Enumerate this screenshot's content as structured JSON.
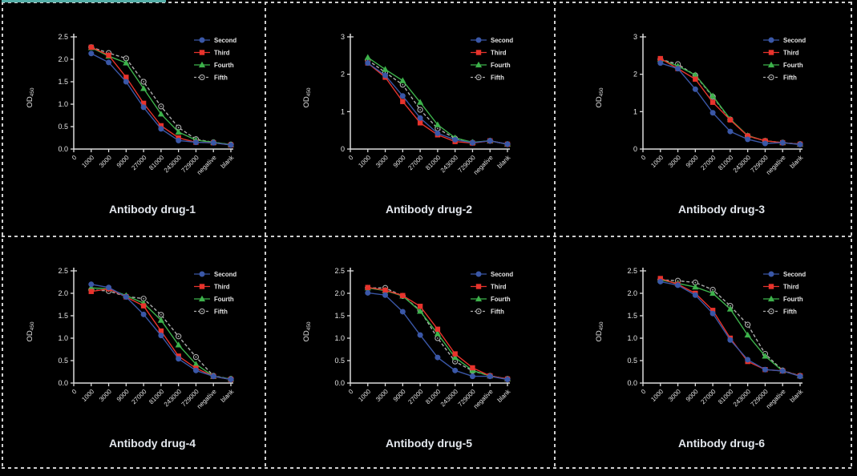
{
  "figure": {
    "background": "#000000",
    "accent_bar_color": "#54AFA8",
    "panel_border_color": "#CFCFCF",
    "axis_color": "#DCDCDC",
    "tick_text_color": "#E3E3E3",
    "title_text_color": "#E2E6EC",
    "legend_text_color": "#E3E3E3",
    "y_axis_label": "OD",
    "y_axis_label_subscript": "450",
    "series_styles": [
      {
        "name": "Second",
        "color": "#3A57A7",
        "marker": "circle",
        "line": "solid"
      },
      {
        "name": "Third",
        "color": "#E8332C",
        "marker": "square",
        "line": "solid"
      },
      {
        "name": "Fourth",
        "color": "#3DB24B",
        "marker": "triangle",
        "line": "solid"
      },
      {
        "name": "Fifth",
        "color": "#ADADAD",
        "marker": "circle-dot",
        "line": "dashed"
      }
    ]
  },
  "chart_data": [
    {
      "type": "line",
      "title": "Antibody drug-1",
      "ylim": [
        0,
        2.5
      ],
      "ytick_labels": [
        "0.0",
        "0.5",
        "1.0",
        "1.5",
        "2.0",
        "2.5"
      ],
      "x_tick_labels": [
        "0",
        "1000",
        "3000",
        "9000",
        "27000",
        "81000",
        "243000",
        "729000",
        "negative",
        "blank"
      ],
      "categories": [
        "1000",
        "3000",
        "9000",
        "27000",
        "81000",
        "243000",
        "729000",
        "negative",
        "blank"
      ],
      "series": [
        {
          "name": "Second",
          "values": [
            2.13,
            1.93,
            1.5,
            0.93,
            0.45,
            0.19,
            0.15,
            0.14,
            0.09
          ]
        },
        {
          "name": "Third",
          "values": [
            2.27,
            2.09,
            1.6,
            1.02,
            0.52,
            0.25,
            0.15,
            0.14,
            0.09
          ]
        },
        {
          "name": "Fourth",
          "values": [
            2.26,
            2.07,
            1.92,
            1.35,
            0.78,
            0.38,
            0.2,
            0.15,
            0.1
          ]
        },
        {
          "name": "Fifth",
          "values": [
            2.27,
            2.14,
            2.02,
            1.5,
            0.95,
            0.48,
            0.22,
            0.15,
            0.1
          ]
        }
      ]
    },
    {
      "type": "line",
      "title": "Antibody drug-2",
      "ylim": [
        0,
        3
      ],
      "ytick_labels": [
        "0",
        "1",
        "2",
        "3"
      ],
      "x_tick_labels": [
        "0",
        "1000",
        "3000",
        "9000",
        "27000",
        "81000",
        "243000",
        "729000",
        "negative",
        "blank"
      ],
      "categories": [
        "1000",
        "3000",
        "9000",
        "27000",
        "81000",
        "243000",
        "729000",
        "negative",
        "blank"
      ],
      "series": [
        {
          "name": "Second",
          "values": [
            2.3,
            1.97,
            1.42,
            0.83,
            0.42,
            0.25,
            0.17,
            0.22,
            0.13
          ]
        },
        {
          "name": "Third",
          "values": [
            2.3,
            1.92,
            1.27,
            0.7,
            0.38,
            0.2,
            0.16,
            0.22,
            0.13
          ]
        },
        {
          "name": "Fourth",
          "values": [
            2.45,
            2.13,
            1.83,
            1.25,
            0.65,
            0.3,
            0.18,
            0.22,
            0.13
          ]
        },
        {
          "name": "Fifth",
          "values": [
            2.38,
            2.05,
            1.72,
            1.05,
            0.55,
            0.28,
            0.17,
            0.22,
            0.13
          ]
        }
      ]
    },
    {
      "type": "line",
      "title": "Antibody drug-3",
      "ylim": [
        0,
        3
      ],
      "ytick_labels": [
        "0",
        "1",
        "2",
        "3"
      ],
      "x_tick_labels": [
        "0",
        "1000",
        "3000",
        "9000",
        "27000",
        "81000",
        "243000",
        "729000",
        "negative",
        "blank"
      ],
      "categories": [
        "1000",
        "3000",
        "9000",
        "27000",
        "81000",
        "243000",
        "729000",
        "negative",
        "blank"
      ],
      "series": [
        {
          "name": "Second",
          "values": [
            2.3,
            2.15,
            1.6,
            0.97,
            0.47,
            0.26,
            0.15,
            0.17,
            0.12
          ]
        },
        {
          "name": "Third",
          "values": [
            2.42,
            2.15,
            1.87,
            1.25,
            0.78,
            0.35,
            0.22,
            0.17,
            0.13
          ]
        },
        {
          "name": "Fourth",
          "values": [
            2.4,
            2.22,
            1.98,
            1.42,
            0.8,
            0.36,
            0.22,
            0.17,
            0.13
          ]
        },
        {
          "name": "Fifth",
          "values": [
            2.4,
            2.27,
            1.97,
            1.4,
            0.79,
            0.35,
            0.22,
            0.17,
            0.13
          ]
        }
      ]
    },
    {
      "type": "line",
      "title": "Antibody drug-4",
      "ylim": [
        0,
        2.5
      ],
      "ytick_labels": [
        "0.0",
        "0.5",
        "1.0",
        "1.5",
        "2.0",
        "2.5"
      ],
      "x_tick_labels": [
        "0",
        "1000",
        "3000",
        "9000",
        "27000",
        "81000",
        "243000",
        "729000",
        "negative",
        "blank"
      ],
      "categories": [
        "1000",
        "3000",
        "9000",
        "27000",
        "81000",
        "243000",
        "729000",
        "negative",
        "blank"
      ],
      "series": [
        {
          "name": "Second",
          "values": [
            2.2,
            2.13,
            1.92,
            1.53,
            1.06,
            0.54,
            0.28,
            0.15,
            0.08
          ]
        },
        {
          "name": "Third",
          "values": [
            2.04,
            2.1,
            1.92,
            1.72,
            1.16,
            0.6,
            0.33,
            0.15,
            0.08
          ]
        },
        {
          "name": "Fourth",
          "values": [
            2.12,
            2.1,
            1.95,
            1.78,
            1.4,
            0.85,
            0.42,
            0.15,
            0.09
          ]
        },
        {
          "name": "Fifth",
          "values": [
            2.08,
            2.05,
            1.93,
            1.88,
            1.52,
            1.04,
            0.58,
            0.16,
            0.09
          ]
        }
      ]
    },
    {
      "type": "line",
      "title": "Antibody drug-5",
      "ylim": [
        0,
        2.5
      ],
      "ytick_labels": [
        "0.0",
        "0.5",
        "1.0",
        "1.5",
        "2.0",
        "2.5"
      ],
      "x_tick_labels": [
        "0",
        "1000",
        "3000",
        "9000",
        "27000",
        "81000",
        "243000",
        "729000",
        "negative",
        "blank"
      ],
      "categories": [
        "1000",
        "3000",
        "9000",
        "27000",
        "81000",
        "243000",
        "729000",
        "negative",
        "blank"
      ],
      "series": [
        {
          "name": "Second",
          "values": [
            2.01,
            1.96,
            1.59,
            1.07,
            0.57,
            0.28,
            0.15,
            0.15,
            0.08
          ]
        },
        {
          "name": "Third",
          "values": [
            2.13,
            2.07,
            1.95,
            1.71,
            1.2,
            0.65,
            0.34,
            0.16,
            0.09
          ]
        },
        {
          "name": "Fourth",
          "values": [
            2.12,
            2.06,
            1.94,
            1.6,
            1.1,
            0.57,
            0.28,
            0.16,
            0.09
          ]
        },
        {
          "name": "Fifth",
          "values": [
            2.12,
            2.12,
            1.94,
            1.62,
            1.0,
            0.48,
            0.27,
            0.16,
            0.09
          ]
        }
      ]
    },
    {
      "type": "line",
      "title": "Antibody drug-6",
      "ylim": [
        0,
        2.5
      ],
      "ytick_labels": [
        "0.0",
        "0.5",
        "1.0",
        "1.5",
        "2.0",
        "2.5"
      ],
      "x_tick_labels": [
        "0",
        "1000",
        "3000",
        "9000",
        "27000",
        "81000",
        "243000",
        "729000",
        "negative",
        "blank"
      ],
      "categories": [
        "1000",
        "3000",
        "9000",
        "27000",
        "81000",
        "243000",
        "729000",
        "negative",
        "blank"
      ],
      "series": [
        {
          "name": "Second",
          "values": [
            2.26,
            2.18,
            1.96,
            1.55,
            0.96,
            0.52,
            0.3,
            0.27,
            0.15
          ]
        },
        {
          "name": "Third",
          "values": [
            2.33,
            2.2,
            2.0,
            1.62,
            1.0,
            0.48,
            0.3,
            0.27,
            0.16
          ]
        },
        {
          "name": "Fourth",
          "values": [
            2.3,
            2.22,
            2.14,
            2.0,
            1.65,
            1.07,
            0.6,
            0.27,
            0.16
          ]
        },
        {
          "name": "Fifth",
          "values": [
            2.3,
            2.28,
            2.24,
            2.08,
            1.72,
            1.3,
            0.65,
            0.28,
            0.16
          ]
        }
      ]
    }
  ]
}
